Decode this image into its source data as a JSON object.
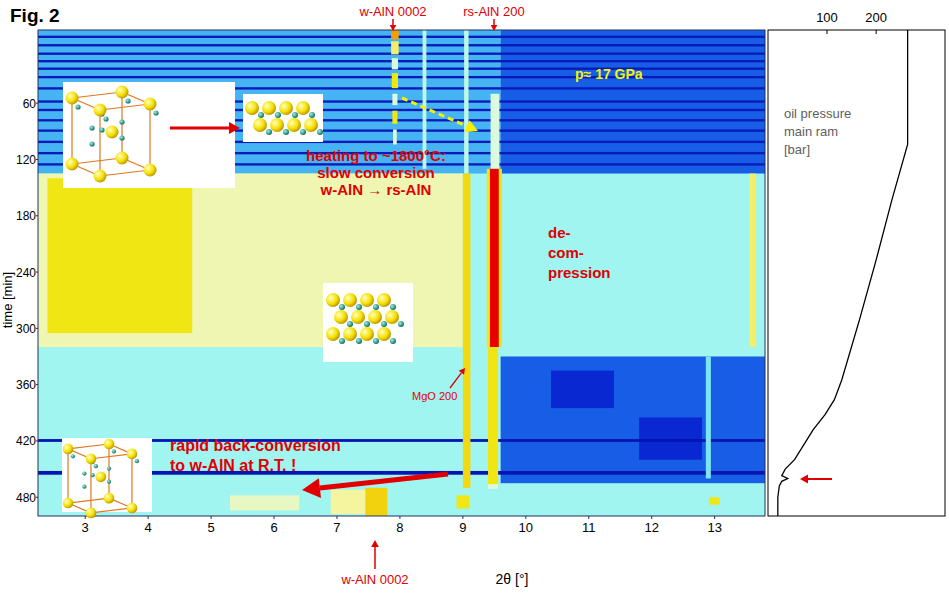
{
  "chart_data": [
    {
      "type": "heatmap",
      "title": "Fig. 2",
      "xlabel": "2θ [°]",
      "ylabel": "time [min]",
      "xlim": [
        2.25,
        13.8
      ],
      "ylim": [
        -18,
        500
      ],
      "xticks": [
        3,
        4,
        5,
        6,
        7,
        8,
        9,
        10,
        11,
        12,
        13
      ],
      "yticks": [
        60,
        120,
        180,
        240,
        300,
        360,
        420,
        480
      ],
      "zlim": [
        0,
        10
      ],
      "cells": [
        [
          2.25,
          13.8,
          -18,
          500,
          5.5
        ],
        [
          2.25,
          9.6,
          -18,
          135,
          4
        ],
        [
          9.6,
          13.8,
          -18,
          135,
          2.5
        ],
        [
          2.25,
          13.8,
          -12,
          -9.5,
          1
        ],
        [
          2.25,
          13.8,
          -3,
          -0.5,
          1
        ],
        [
          2.25,
          13.8,
          6,
          8.5,
          1
        ],
        [
          2.25,
          13.8,
          14,
          16.5,
          1
        ],
        [
          2.25,
          13.8,
          22,
          24.5,
          1
        ],
        [
          2.25,
          13.8,
          31,
          33.5,
          1
        ],
        [
          2.25,
          13.8,
          43,
          45.5,
          1
        ],
        [
          2.25,
          13.8,
          57,
          59.5,
          1
        ],
        [
          2.25,
          13.8,
          66,
          68.5,
          1
        ],
        [
          2.25,
          13.8,
          77,
          79.5,
          1
        ],
        [
          2.25,
          13.8,
          88,
          90.5,
          1
        ],
        [
          2.25,
          13.8,
          100,
          102.5,
          1
        ],
        [
          2.25,
          13.8,
          112,
          114.5,
          1
        ],
        [
          2.25,
          13.8,
          124,
          126.5,
          1
        ],
        [
          2.25,
          9.0,
          135,
          320,
          7
        ],
        [
          2.4,
          4.7,
          140,
          305,
          8
        ],
        [
          9.6,
          13.8,
          330,
          465,
          2.5
        ],
        [
          10.4,
          11.4,
          345,
          385,
          1.5
        ],
        [
          11.8,
          12.8,
          395,
          440,
          1.5
        ],
        [
          2.25,
          13.8,
          418,
          421,
          0.8
        ],
        [
          2.25,
          13.8,
          452,
          456,
          0.8
        ],
        [
          7.86,
          7.98,
          -18,
          -8,
          9
        ],
        [
          7.86,
          7.98,
          -6,
          8,
          7.5
        ],
        [
          7.87,
          7.97,
          12,
          24,
          6.5
        ],
        [
          7.87,
          7.97,
          28,
          44,
          8
        ],
        [
          7.88,
          7.96,
          50,
          62,
          6.5
        ],
        [
          7.88,
          7.96,
          68,
          82,
          8
        ],
        [
          7.89,
          7.95,
          88,
          104,
          6.5
        ],
        [
          8.36,
          8.42,
          -18,
          130,
          6
        ],
        [
          9.02,
          9.09,
          -18,
          135,
          6
        ],
        [
          9.0,
          9.12,
          135,
          470,
          8.2
        ],
        [
          9.44,
          9.58,
          50,
          130,
          6.5
        ],
        [
          9.38,
          9.62,
          130,
          320,
          8
        ],
        [
          9.43,
          9.57,
          130,
          320,
          10
        ],
        [
          9.4,
          9.56,
          320,
          468,
          8
        ],
        [
          13.55,
          13.66,
          135,
          320,
          7.5
        ],
        [
          12.86,
          12.94,
          330,
          460,
          5
        ],
        [
          6.9,
          7.5,
          472,
          498,
          7.2
        ],
        [
          7.45,
          7.8,
          470,
          500,
          8.3
        ],
        [
          5.3,
          6.4,
          478,
          494,
          6.8
        ],
        [
          8.9,
          9.1,
          478,
          492,
          8
        ],
        [
          9.4,
          9.56,
          466,
          471,
          6.5
        ],
        [
          12.92,
          13.08,
          480,
          488,
          8
        ]
      ],
      "annotations": {
        "peak_top_w": "w-AlN  0002",
        "peak_top_rs": "rs-AlN  200",
        "pressure": "p≈ 17 GPa",
        "heating": [
          "heating to ~1800°C:",
          "slow conversion",
          "w-AlN → rs-AlN"
        ],
        "decompression": [
          "de-",
          "com-",
          "pression"
        ],
        "mgo": "MgO 200",
        "back_conversion": [
          "rapid back-conversion",
          "to w-AlN at R.T. !"
        ],
        "peak_bottom_w": "w-AlN  0002"
      }
    },
    {
      "type": "line",
      "title": [
        "oil pressure",
        "main ram",
        "[bar]"
      ],
      "xlim": [
        -20,
        340
      ],
      "xticks": [
        100,
        200
      ],
      "ylim": [
        -18,
        500
      ],
      "tick_labels": "x",
      "series": [
        {
          "color": "#000000",
          "y": [
            -18,
            104,
            163,
            227,
            291,
            355,
            376,
            392,
            408,
            440,
            450,
            457,
            460,
            463,
            468,
            480,
            500
          ],
          "values": [
            264,
            264,
            232,
            200,
            166,
            130,
            115,
            96,
            72,
            34,
            15,
            8,
            20,
            8,
            3,
            0,
            0
          ]
        }
      ]
    }
  ]
}
